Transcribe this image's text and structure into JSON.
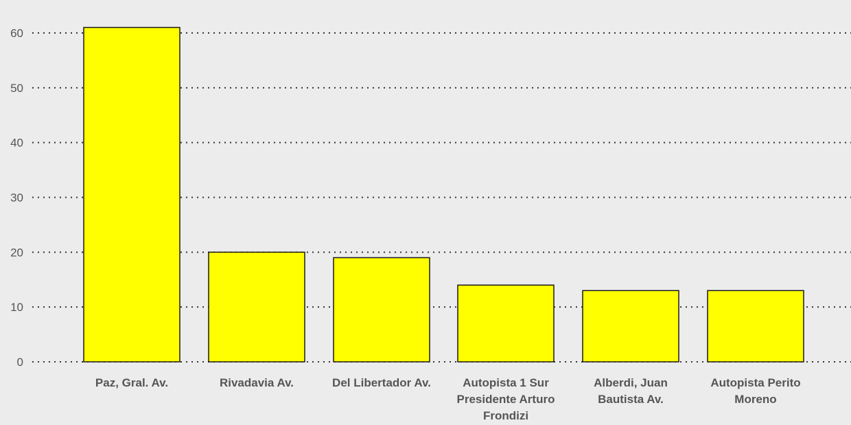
{
  "colors": {
    "background": "#ececec",
    "bar_fill": "#ffff00",
    "bar_stroke": "#1a1a1a",
    "grid": "#333333",
    "text": "#555555"
  },
  "chart_data": {
    "type": "bar",
    "categories": [
      "Paz, Gral. Av.",
      "Rivadavia Av.",
      "Del Libertador Av.",
      "Autopista 1 Sur Presidente Arturo Frondizi",
      "Alberdi, Juan Bautista Av.",
      "Autopista Perito Moreno"
    ],
    "category_label_lines": [
      [
        "Paz, Gral. Av."
      ],
      [
        "Rivadavia Av."
      ],
      [
        "Del Libertador Av."
      ],
      [
        "Autopista 1 Sur",
        "Presidente Arturo",
        "Frondizi"
      ],
      [
        "Alberdi, Juan",
        "Bautista Av."
      ],
      [
        "Autopista Perito",
        "Moreno"
      ]
    ],
    "values": [
      61,
      20,
      19,
      14,
      13,
      13
    ],
    "yticks": [
      0,
      10,
      20,
      30,
      40,
      50,
      60
    ],
    "ytick_labels": [
      "0",
      "10",
      "20",
      "30",
      "40",
      "50",
      "60"
    ],
    "ylim": [
      0,
      60
    ],
    "title": "",
    "xlabel": "",
    "ylabel": "",
    "grid": true,
    "grid_style": "dotted",
    "legend": "none"
  }
}
